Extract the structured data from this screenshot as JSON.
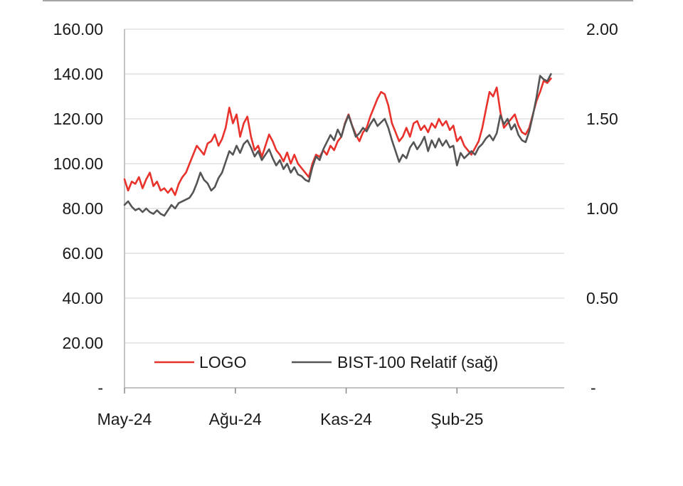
{
  "chart_data": {
    "type": "line",
    "x_unit": "month",
    "x_range": [
      "2024-05-01",
      "2025-05-01"
    ],
    "x_ticks": [
      {
        "label": "May-24",
        "date": "2024-05-01"
      },
      {
        "label": "Ağu-24",
        "date": "2024-08-01"
      },
      {
        "label": "Kas-24",
        "date": "2024-11-01"
      },
      {
        "label": "Şub-25",
        "date": "2025-02-01"
      }
    ],
    "y_left": {
      "min": 0,
      "max": 160,
      "ticks": [
        {
          "value": 0,
          "label": "-"
        },
        {
          "value": 20,
          "label": "20.00"
        },
        {
          "value": 40,
          "label": "40.00"
        },
        {
          "value": 60,
          "label": "60.00"
        },
        {
          "value": 80,
          "label": "80.00"
        },
        {
          "value": 100,
          "label": "100.00"
        },
        {
          "value": 120,
          "label": "120.00"
        },
        {
          "value": 140,
          "label": "140.00"
        },
        {
          "value": 160,
          "label": "160.00"
        }
      ]
    },
    "y_right": {
      "min": 0,
      "max": 2.0,
      "ticks": [
        {
          "value": 0,
          "label": "-"
        },
        {
          "value": 0.5,
          "label": "0.50"
        },
        {
          "value": 1.0,
          "label": "1.00"
        },
        {
          "value": 1.5,
          "label": "1.50"
        },
        {
          "value": 2.0,
          "label": "2.00"
        }
      ]
    },
    "grid": "horizontal",
    "legend_position": "bottom-inside",
    "series": [
      {
        "name": "LOGO",
        "axis": "left",
        "color": "#e8322b",
        "points": [
          [
            "2024-05-01",
            93
          ],
          [
            "2024-05-04",
            88
          ],
          [
            "2024-05-07",
            92
          ],
          [
            "2024-05-10",
            91
          ],
          [
            "2024-05-13",
            94
          ],
          [
            "2024-05-16",
            89
          ],
          [
            "2024-05-19",
            93
          ],
          [
            "2024-05-22",
            96
          ],
          [
            "2024-05-25",
            90
          ],
          [
            "2024-05-28",
            92
          ],
          [
            "2024-05-31",
            88
          ],
          [
            "2024-06-03",
            89
          ],
          [
            "2024-06-06",
            87
          ],
          [
            "2024-06-09",
            89
          ],
          [
            "2024-06-12",
            86
          ],
          [
            "2024-06-15",
            91
          ],
          [
            "2024-06-18",
            94
          ],
          [
            "2024-06-21",
            96
          ],
          [
            "2024-06-24",
            100
          ],
          [
            "2024-06-27",
            104
          ],
          [
            "2024-06-30",
            108
          ],
          [
            "2024-07-03",
            106
          ],
          [
            "2024-07-06",
            104
          ],
          [
            "2024-07-09",
            109
          ],
          [
            "2024-07-12",
            110
          ],
          [
            "2024-07-15",
            113
          ],
          [
            "2024-07-18",
            108
          ],
          [
            "2024-07-21",
            111
          ],
          [
            "2024-07-24",
            116
          ],
          [
            "2024-07-27",
            125
          ],
          [
            "2024-07-30",
            118
          ],
          [
            "2024-08-02",
            122
          ],
          [
            "2024-08-05",
            112
          ],
          [
            "2024-08-08",
            118
          ],
          [
            "2024-08-11",
            121
          ],
          [
            "2024-08-14",
            112
          ],
          [
            "2024-08-17",
            106
          ],
          [
            "2024-08-20",
            108
          ],
          [
            "2024-08-23",
            103
          ],
          [
            "2024-08-26",
            108
          ],
          [
            "2024-08-29",
            113
          ],
          [
            "2024-09-01",
            110
          ],
          [
            "2024-09-04",
            106
          ],
          [
            "2024-09-07",
            104
          ],
          [
            "2024-09-10",
            101
          ],
          [
            "2024-09-13",
            105
          ],
          [
            "2024-09-16",
            100
          ],
          [
            "2024-09-19",
            104
          ],
          [
            "2024-09-22",
            100
          ],
          [
            "2024-09-25",
            98
          ],
          [
            "2024-09-28",
            96
          ],
          [
            "2024-10-01",
            94
          ],
          [
            "2024-10-04",
            100
          ],
          [
            "2024-10-07",
            104
          ],
          [
            "2024-10-10",
            103
          ],
          [
            "2024-10-13",
            106
          ],
          [
            "2024-10-16",
            104
          ],
          [
            "2024-10-19",
            108
          ],
          [
            "2024-10-22",
            106
          ],
          [
            "2024-10-25",
            110
          ],
          [
            "2024-10-28",
            112
          ],
          [
            "2024-10-31",
            118
          ],
          [
            "2024-11-03",
            122
          ],
          [
            "2024-11-06",
            117
          ],
          [
            "2024-11-09",
            113
          ],
          [
            "2024-11-12",
            110
          ],
          [
            "2024-11-15",
            114
          ],
          [
            "2024-11-18",
            116
          ],
          [
            "2024-11-21",
            121
          ],
          [
            "2024-11-24",
            125
          ],
          [
            "2024-11-27",
            129
          ],
          [
            "2024-11-30",
            132
          ],
          [
            "2024-12-03",
            131
          ],
          [
            "2024-12-06",
            126
          ],
          [
            "2024-12-09",
            118
          ],
          [
            "2024-12-12",
            114
          ],
          [
            "2024-12-15",
            110
          ],
          [
            "2024-12-18",
            112
          ],
          [
            "2024-12-21",
            116
          ],
          [
            "2024-12-24",
            112
          ],
          [
            "2024-12-27",
            118
          ],
          [
            "2024-12-30",
            119
          ],
          [
            "2025-01-02",
            115
          ],
          [
            "2025-01-05",
            117
          ],
          [
            "2025-01-08",
            114
          ],
          [
            "2025-01-11",
            118
          ],
          [
            "2025-01-14",
            116
          ],
          [
            "2025-01-17",
            120
          ],
          [
            "2025-01-20",
            117
          ],
          [
            "2025-01-23",
            119
          ],
          [
            "2025-01-26",
            115
          ],
          [
            "2025-01-29",
            117
          ],
          [
            "2025-02-01",
            110
          ],
          [
            "2025-02-04",
            112
          ],
          [
            "2025-02-07",
            108
          ],
          [
            "2025-02-10",
            106
          ],
          [
            "2025-02-13",
            104
          ],
          [
            "2025-02-16",
            107
          ],
          [
            "2025-02-19",
            110
          ],
          [
            "2025-02-22",
            116
          ],
          [
            "2025-02-25",
            124
          ],
          [
            "2025-02-28",
            132
          ],
          [
            "2025-03-03",
            130
          ],
          [
            "2025-03-06",
            134
          ],
          [
            "2025-03-09",
            123
          ],
          [
            "2025-03-12",
            116
          ],
          [
            "2025-03-15",
            118
          ],
          [
            "2025-03-18",
            120
          ],
          [
            "2025-03-21",
            122
          ],
          [
            "2025-03-24",
            117
          ],
          [
            "2025-03-27",
            114
          ],
          [
            "2025-03-30",
            113
          ],
          [
            "2025-04-02",
            116
          ],
          [
            "2025-04-05",
            122
          ],
          [
            "2025-04-08",
            128
          ],
          [
            "2025-04-11",
            132
          ],
          [
            "2025-04-14",
            137
          ],
          [
            "2025-04-17",
            136
          ],
          [
            "2025-04-20",
            138
          ]
        ]
      },
      {
        "name": "BIST-100 Relatif (sağ)",
        "axis": "right",
        "color": "#555555",
        "points": [
          [
            "2024-05-01",
            1.02
          ],
          [
            "2024-05-04",
            1.04
          ],
          [
            "2024-05-07",
            1.01
          ],
          [
            "2024-05-10",
            0.99
          ],
          [
            "2024-05-13",
            1.0
          ],
          [
            "2024-05-16",
            0.98
          ],
          [
            "2024-05-19",
            1.0
          ],
          [
            "2024-05-22",
            0.98
          ],
          [
            "2024-05-25",
            0.97
          ],
          [
            "2024-05-28",
            0.99
          ],
          [
            "2024-05-31",
            0.97
          ],
          [
            "2024-06-03",
            0.96
          ],
          [
            "2024-06-06",
            0.99
          ],
          [
            "2024-06-09",
            1.02
          ],
          [
            "2024-06-12",
            1.0
          ],
          [
            "2024-06-15",
            1.03
          ],
          [
            "2024-06-18",
            1.04
          ],
          [
            "2024-06-21",
            1.05
          ],
          [
            "2024-06-24",
            1.06
          ],
          [
            "2024-06-27",
            1.09
          ],
          [
            "2024-06-30",
            1.14
          ],
          [
            "2024-07-03",
            1.2
          ],
          [
            "2024-07-06",
            1.16
          ],
          [
            "2024-07-09",
            1.14
          ],
          [
            "2024-07-12",
            1.1
          ],
          [
            "2024-07-15",
            1.12
          ],
          [
            "2024-07-18",
            1.17
          ],
          [
            "2024-07-21",
            1.2
          ],
          [
            "2024-07-24",
            1.26
          ],
          [
            "2024-07-27",
            1.32
          ],
          [
            "2024-07-30",
            1.3
          ],
          [
            "2024-08-02",
            1.35
          ],
          [
            "2024-08-05",
            1.31
          ],
          [
            "2024-08-08",
            1.36
          ],
          [
            "2024-08-11",
            1.38
          ],
          [
            "2024-08-14",
            1.34
          ],
          [
            "2024-08-17",
            1.29
          ],
          [
            "2024-08-20",
            1.32
          ],
          [
            "2024-08-23",
            1.27
          ],
          [
            "2024-08-26",
            1.3
          ],
          [
            "2024-08-29",
            1.33
          ],
          [
            "2024-09-01",
            1.28
          ],
          [
            "2024-09-04",
            1.24
          ],
          [
            "2024-09-07",
            1.27
          ],
          [
            "2024-09-10",
            1.22
          ],
          [
            "2024-09-13",
            1.25
          ],
          [
            "2024-09-16",
            1.2
          ],
          [
            "2024-09-19",
            1.23
          ],
          [
            "2024-09-22",
            1.19
          ],
          [
            "2024-09-25",
            1.18
          ],
          [
            "2024-09-28",
            1.16
          ],
          [
            "2024-10-01",
            1.15
          ],
          [
            "2024-10-04",
            1.23
          ],
          [
            "2024-10-07",
            1.29
          ],
          [
            "2024-10-10",
            1.27
          ],
          [
            "2024-10-13",
            1.33
          ],
          [
            "2024-10-16",
            1.37
          ],
          [
            "2024-10-19",
            1.41
          ],
          [
            "2024-10-22",
            1.38
          ],
          [
            "2024-10-25",
            1.44
          ],
          [
            "2024-10-28",
            1.4
          ],
          [
            "2024-10-31",
            1.47
          ],
          [
            "2024-11-03",
            1.52
          ],
          [
            "2024-11-06",
            1.46
          ],
          [
            "2024-11-09",
            1.4
          ],
          [
            "2024-11-12",
            1.42
          ],
          [
            "2024-11-15",
            1.45
          ],
          [
            "2024-11-18",
            1.43
          ],
          [
            "2024-11-21",
            1.47
          ],
          [
            "2024-11-24",
            1.5
          ],
          [
            "2024-11-27",
            1.46
          ],
          [
            "2024-11-30",
            1.48
          ],
          [
            "2024-12-03",
            1.5
          ],
          [
            "2024-12-06",
            1.45
          ],
          [
            "2024-12-09",
            1.38
          ],
          [
            "2024-12-12",
            1.32
          ],
          [
            "2024-12-15",
            1.26
          ],
          [
            "2024-12-18",
            1.3
          ],
          [
            "2024-12-21",
            1.28
          ],
          [
            "2024-12-24",
            1.34
          ],
          [
            "2024-12-27",
            1.37
          ],
          [
            "2024-12-30",
            1.33
          ],
          [
            "2025-01-02",
            1.36
          ],
          [
            "2025-01-05",
            1.4
          ],
          [
            "2025-01-08",
            1.32
          ],
          [
            "2025-01-11",
            1.38
          ],
          [
            "2025-01-14",
            1.34
          ],
          [
            "2025-01-17",
            1.39
          ],
          [
            "2025-01-20",
            1.35
          ],
          [
            "2025-01-23",
            1.38
          ],
          [
            "2025-01-26",
            1.34
          ],
          [
            "2025-01-29",
            1.35
          ],
          [
            "2025-02-01",
            1.24
          ],
          [
            "2025-02-04",
            1.31
          ],
          [
            "2025-02-07",
            1.28
          ],
          [
            "2025-02-10",
            1.3
          ],
          [
            "2025-02-13",
            1.32
          ],
          [
            "2025-02-16",
            1.3
          ],
          [
            "2025-02-19",
            1.34
          ],
          [
            "2025-02-22",
            1.36
          ],
          [
            "2025-02-25",
            1.39
          ],
          [
            "2025-02-28",
            1.41
          ],
          [
            "2025-03-03",
            1.38
          ],
          [
            "2025-03-06",
            1.42
          ],
          [
            "2025-03-09",
            1.52
          ],
          [
            "2025-03-12",
            1.47
          ],
          [
            "2025-03-15",
            1.5
          ],
          [
            "2025-03-18",
            1.44
          ],
          [
            "2025-03-21",
            1.47
          ],
          [
            "2025-03-24",
            1.41
          ],
          [
            "2025-03-27",
            1.38
          ],
          [
            "2025-03-30",
            1.37
          ],
          [
            "2025-04-02",
            1.43
          ],
          [
            "2025-04-05",
            1.52
          ],
          [
            "2025-04-08",
            1.62
          ],
          [
            "2025-04-11",
            1.74
          ],
          [
            "2025-04-14",
            1.72
          ],
          [
            "2025-04-17",
            1.71
          ],
          [
            "2025-04-20",
            1.75
          ]
        ]
      }
    ]
  }
}
